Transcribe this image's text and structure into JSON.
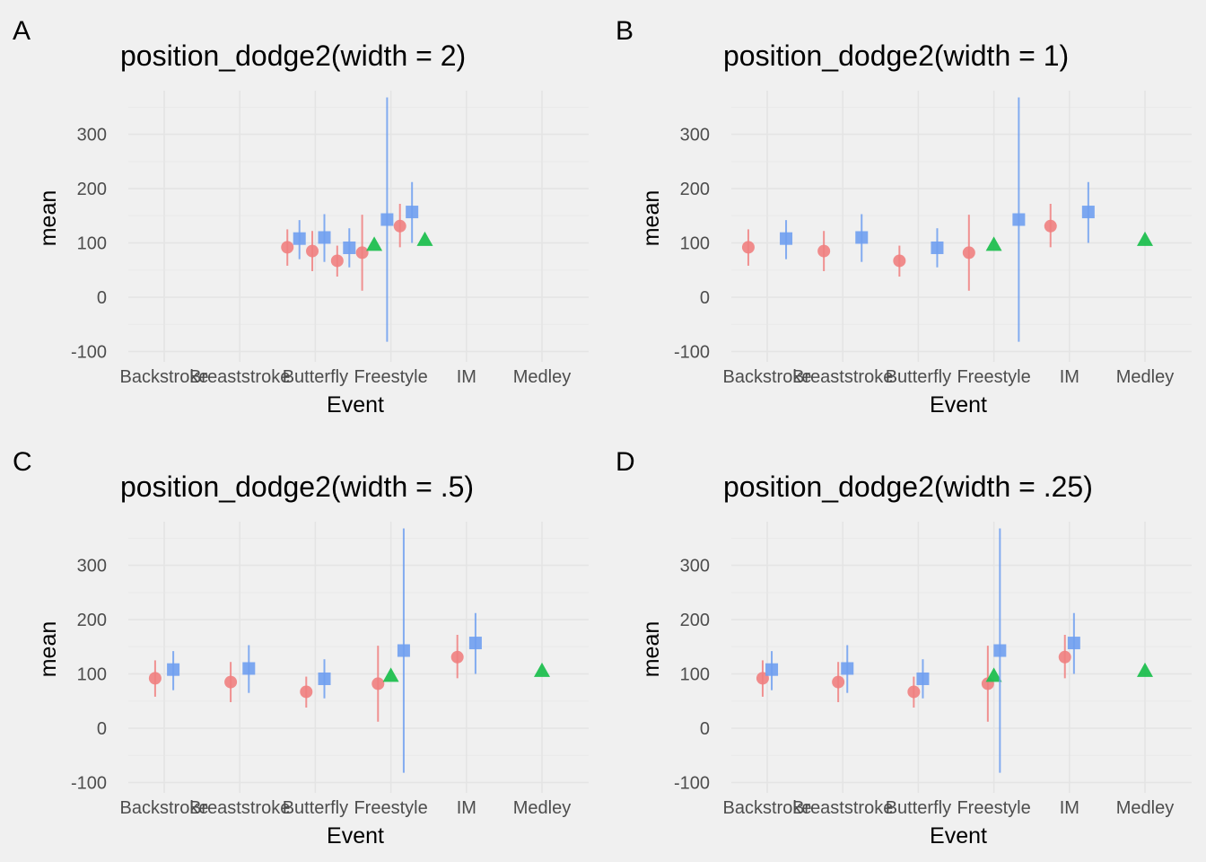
{
  "colors": {
    "background": "#f0f0f0",
    "grid": "#e6e6e6",
    "tick_text": "#4d4d4d",
    "text": "#000000",
    "series_circle": "#f08080",
    "series_square": "#6f9ff0",
    "series_triangle": "#1fbf4f"
  },
  "chart_data": [
    {
      "type": "scatter",
      "panel_tag": "A",
      "title": "position_dodge2(width = 2)",
      "dodge_width": 2,
      "xlabel": "Event",
      "ylabel": "mean",
      "categories": [
        "Backstroke",
        "Breaststroke",
        "Butterfly",
        "Freestyle",
        "IM",
        "Medley"
      ],
      "yticks": [
        -100,
        0,
        100,
        200,
        300
      ],
      "ylim": [
        -125,
        385
      ],
      "points": [
        {
          "category": "Backstroke",
          "group": "circle",
          "x": 2.63,
          "mean": 92,
          "lo": 58,
          "hi": 125
        },
        {
          "category": "Backstroke",
          "group": "square",
          "x": 2.79,
          "mean": 108,
          "lo": 70,
          "hi": 142
        },
        {
          "category": "Breaststroke",
          "group": "circle",
          "x": 2.96,
          "mean": 85,
          "lo": 48,
          "hi": 122
        },
        {
          "category": "Breaststroke",
          "group": "square",
          "x": 3.12,
          "mean": 110,
          "lo": 65,
          "hi": 153
        },
        {
          "category": "Butterfly",
          "group": "circle",
          "x": 3.29,
          "mean": 67,
          "lo": 38,
          "hi": 95
        },
        {
          "category": "Butterfly",
          "group": "square",
          "x": 3.45,
          "mean": 91,
          "lo": 55,
          "hi": 127
        },
        {
          "category": "Freestyle",
          "group": "circle",
          "x": 3.62,
          "mean": 82,
          "lo": 12,
          "hi": 152
        },
        {
          "category": "Freestyle",
          "group": "triangle",
          "x": 3.78,
          "mean": 97,
          "lo": 97,
          "hi": 97
        },
        {
          "category": "Freestyle",
          "group": "square",
          "x": 3.95,
          "mean": 143,
          "lo": -82,
          "hi": 368
        },
        {
          "category": "IM",
          "group": "circle",
          "x": 4.12,
          "mean": 131,
          "lo": 92,
          "hi": 172
        },
        {
          "category": "IM",
          "group": "square",
          "x": 4.28,
          "mean": 157,
          "lo": 100,
          "hi": 212
        },
        {
          "category": "Medley",
          "group": "triangle",
          "x": 4.45,
          "mean": 106,
          "lo": 106,
          "hi": 106
        }
      ]
    },
    {
      "type": "scatter",
      "panel_tag": "B",
      "title": "position_dodge2(width = 1)",
      "dodge_width": 1,
      "xlabel": "Event",
      "ylabel": "mean",
      "categories": [
        "Backstroke",
        "Breaststroke",
        "Butterfly",
        "Freestyle",
        "IM",
        "Medley"
      ],
      "yticks": [
        -100,
        0,
        100,
        200,
        300
      ],
      "ylim": [
        -125,
        385
      ],
      "points": [
        {
          "category": "Backstroke",
          "group": "circle",
          "x": 0.75,
          "mean": 92,
          "lo": 58,
          "hi": 125
        },
        {
          "category": "Backstroke",
          "group": "square",
          "x": 1.25,
          "mean": 108,
          "lo": 70,
          "hi": 142
        },
        {
          "category": "Breaststroke",
          "group": "circle",
          "x": 1.75,
          "mean": 85,
          "lo": 48,
          "hi": 122
        },
        {
          "category": "Breaststroke",
          "group": "square",
          "x": 2.25,
          "mean": 110,
          "lo": 65,
          "hi": 153
        },
        {
          "category": "Butterfly",
          "group": "circle",
          "x": 2.75,
          "mean": 67,
          "lo": 38,
          "hi": 95
        },
        {
          "category": "Butterfly",
          "group": "square",
          "x": 3.25,
          "mean": 91,
          "lo": 55,
          "hi": 127
        },
        {
          "category": "Freestyle",
          "group": "circle",
          "x": 3.67,
          "mean": 82,
          "lo": 12,
          "hi": 152
        },
        {
          "category": "Freestyle",
          "group": "triangle",
          "x": 4.0,
          "mean": 97,
          "lo": 97,
          "hi": 97
        },
        {
          "category": "Freestyle",
          "group": "square",
          "x": 4.33,
          "mean": 143,
          "lo": -82,
          "hi": 368
        },
        {
          "category": "IM",
          "group": "circle",
          "x": 4.75,
          "mean": 131,
          "lo": 92,
          "hi": 172
        },
        {
          "category": "IM",
          "group": "square",
          "x": 5.25,
          "mean": 157,
          "lo": 100,
          "hi": 212
        },
        {
          "category": "Medley",
          "group": "triangle",
          "x": 6.0,
          "mean": 106,
          "lo": 106,
          "hi": 106
        }
      ]
    },
    {
      "type": "scatter",
      "panel_tag": "C",
      "title": "position_dodge2(width = .5)",
      "dodge_width": 0.5,
      "xlabel": "Event",
      "ylabel": "mean",
      "categories": [
        "Backstroke",
        "Breaststroke",
        "Butterfly",
        "Freestyle",
        "IM",
        "Medley"
      ],
      "yticks": [
        -100,
        0,
        100,
        200,
        300
      ],
      "ylim": [
        -125,
        385
      ],
      "points": [
        {
          "category": "Backstroke",
          "group": "circle",
          "x": 0.88,
          "mean": 92,
          "lo": 58,
          "hi": 125
        },
        {
          "category": "Backstroke",
          "group": "square",
          "x": 1.12,
          "mean": 108,
          "lo": 70,
          "hi": 142
        },
        {
          "category": "Breaststroke",
          "group": "circle",
          "x": 1.88,
          "mean": 85,
          "lo": 48,
          "hi": 122
        },
        {
          "category": "Breaststroke",
          "group": "square",
          "x": 2.12,
          "mean": 110,
          "lo": 65,
          "hi": 153
        },
        {
          "category": "Butterfly",
          "group": "circle",
          "x": 2.88,
          "mean": 67,
          "lo": 38,
          "hi": 95
        },
        {
          "category": "Butterfly",
          "group": "square",
          "x": 3.12,
          "mean": 91,
          "lo": 55,
          "hi": 127
        },
        {
          "category": "Freestyle",
          "group": "circle",
          "x": 3.83,
          "mean": 82,
          "lo": 12,
          "hi": 152
        },
        {
          "category": "Freestyle",
          "group": "triangle",
          "x": 4.0,
          "mean": 97,
          "lo": 97,
          "hi": 97
        },
        {
          "category": "Freestyle",
          "group": "square",
          "x": 4.17,
          "mean": 143,
          "lo": -82,
          "hi": 368
        },
        {
          "category": "IM",
          "group": "circle",
          "x": 4.88,
          "mean": 131,
          "lo": 92,
          "hi": 172
        },
        {
          "category": "IM",
          "group": "square",
          "x": 5.12,
          "mean": 157,
          "lo": 100,
          "hi": 212
        },
        {
          "category": "Medley",
          "group": "triangle",
          "x": 6.0,
          "mean": 106,
          "lo": 106,
          "hi": 106
        }
      ]
    },
    {
      "type": "scatter",
      "panel_tag": "D",
      "title": "position_dodge2(width = .25)",
      "dodge_width": 0.25,
      "xlabel": "Event",
      "ylabel": "mean",
      "categories": [
        "Backstroke",
        "Breaststroke",
        "Butterfly",
        "Freestyle",
        "IM",
        "Medley"
      ],
      "yticks": [
        -100,
        0,
        100,
        200,
        300
      ],
      "ylim": [
        -125,
        385
      ],
      "points": [
        {
          "category": "Backstroke",
          "group": "circle",
          "x": 0.94,
          "mean": 92,
          "lo": 58,
          "hi": 125
        },
        {
          "category": "Backstroke",
          "group": "square",
          "x": 1.06,
          "mean": 108,
          "lo": 70,
          "hi": 142
        },
        {
          "category": "Breaststroke",
          "group": "circle",
          "x": 1.94,
          "mean": 85,
          "lo": 48,
          "hi": 122
        },
        {
          "category": "Breaststroke",
          "group": "square",
          "x": 2.06,
          "mean": 110,
          "lo": 65,
          "hi": 153
        },
        {
          "category": "Butterfly",
          "group": "circle",
          "x": 2.94,
          "mean": 67,
          "lo": 38,
          "hi": 95
        },
        {
          "category": "Butterfly",
          "group": "square",
          "x": 3.06,
          "mean": 91,
          "lo": 55,
          "hi": 127
        },
        {
          "category": "Freestyle",
          "group": "circle",
          "x": 3.92,
          "mean": 82,
          "lo": 12,
          "hi": 152
        },
        {
          "category": "Freestyle",
          "group": "triangle",
          "x": 4.0,
          "mean": 97,
          "lo": 97,
          "hi": 97
        },
        {
          "category": "Freestyle",
          "group": "square",
          "x": 4.08,
          "mean": 143,
          "lo": -82,
          "hi": 368
        },
        {
          "category": "IM",
          "group": "circle",
          "x": 4.94,
          "mean": 131,
          "lo": 92,
          "hi": 172
        },
        {
          "category": "IM",
          "group": "square",
          "x": 5.06,
          "mean": 157,
          "lo": 100,
          "hi": 212
        },
        {
          "category": "Medley",
          "group": "triangle",
          "x": 6.0,
          "mean": 106,
          "lo": 106,
          "hi": 106
        }
      ]
    }
  ]
}
